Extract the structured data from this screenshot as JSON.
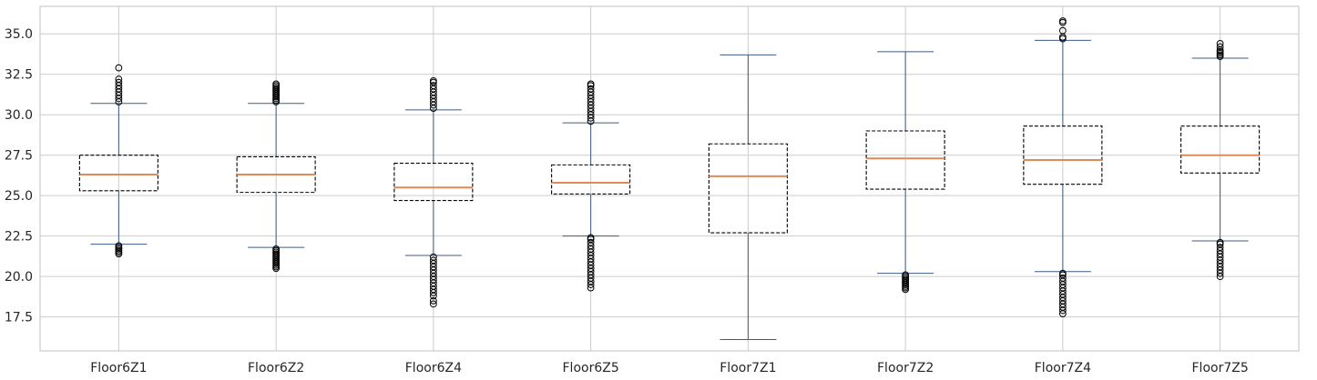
{
  "chart_data": {
    "type": "box",
    "categories": [
      "Floor6Z1",
      "Floor6Z2",
      "Floor6Z4",
      "Floor6Z5",
      "Floor7Z1",
      "Floor7Z2",
      "Floor7Z4",
      "Floor7Z5"
    ],
    "ylim": [
      15.4,
      36.7
    ],
    "yticks": [
      "17.5",
      "20.0",
      "22.5",
      "25.0",
      "27.5",
      "30.0",
      "32.5",
      "35.0"
    ],
    "grid": true,
    "boxes": [
      {
        "name": "Floor6Z1",
        "whisker_low": 22.0,
        "q1": 25.3,
        "median": 26.3,
        "q3": 27.5,
        "whisker_high": 30.7,
        "outliers_low": [
          21.4,
          21.5,
          21.6,
          21.7,
          21.8,
          21.9
        ],
        "outliers_high": [
          30.8,
          31.0,
          31.2,
          31.4,
          31.6,
          31.8,
          32.0,
          32.2,
          32.9
        ]
      },
      {
        "name": "Floor6Z2",
        "whisker_low": 21.8,
        "q1": 25.2,
        "median": 26.3,
        "q3": 27.4,
        "whisker_high": 30.7,
        "outliers_low": [
          20.5,
          20.6,
          20.7,
          20.8,
          20.9,
          21.0,
          21.1,
          21.2,
          21.3,
          21.4,
          21.5,
          21.6,
          21.7
        ],
        "outliers_high": [
          30.8,
          30.9,
          31.0,
          31.1,
          31.2,
          31.3,
          31.4,
          31.5,
          31.6,
          31.7,
          31.8,
          31.9
        ]
      },
      {
        "name": "Floor6Z4",
        "whisker_low": 21.3,
        "q1": 24.7,
        "median": 25.5,
        "q3": 27.0,
        "whisker_high": 30.3,
        "outliers_low": [
          18.3,
          18.5,
          18.8,
          19.0,
          19.2,
          19.4,
          19.6,
          19.8,
          20.0,
          20.2,
          20.4,
          20.6,
          20.8,
          21.0,
          21.2
        ],
        "outliers_high": [
          30.4,
          30.6,
          30.8,
          31.0,
          31.2,
          31.4,
          31.6,
          31.8,
          32.0,
          32.1
        ]
      },
      {
        "name": "Floor6Z5",
        "whisker_low": 22.5,
        "q1": 25.1,
        "median": 25.8,
        "q3": 26.9,
        "whisker_high": 29.5,
        "outliers_low": [
          19.3,
          19.5,
          19.7,
          19.9,
          20.1,
          20.3,
          20.5,
          20.7,
          20.9,
          21.1,
          21.3,
          21.5,
          21.7,
          21.9,
          22.1,
          22.3,
          22.4
        ],
        "outliers_high": [
          29.6,
          29.8,
          30.0,
          30.2,
          30.4,
          30.6,
          30.8,
          31.0,
          31.2,
          31.4,
          31.6,
          31.8,
          31.9
        ]
      },
      {
        "name": "Floor7Z1",
        "whisker_low": 16.1,
        "q1": 22.7,
        "median": 26.2,
        "q3": 28.2,
        "whisker_high": 33.7,
        "outliers_low": [],
        "outliers_high": []
      },
      {
        "name": "Floor7Z2",
        "whisker_low": 20.2,
        "q1": 25.4,
        "median": 27.3,
        "q3": 29.0,
        "whisker_high": 33.9,
        "outliers_low": [
          19.2,
          19.3,
          19.4,
          19.5,
          19.6,
          19.7,
          19.8,
          19.9,
          20.0,
          20.1
        ],
        "outliers_high": []
      },
      {
        "name": "Floor7Z4",
        "whisker_low": 20.3,
        "q1": 25.7,
        "median": 27.2,
        "q3": 29.3,
        "whisker_high": 34.6,
        "outliers_low": [
          17.7,
          17.9,
          18.1,
          18.3,
          18.5,
          18.7,
          18.9,
          19.1,
          19.3,
          19.5,
          19.7,
          19.9,
          20.1,
          20.2
        ],
        "outliers_high": [
          34.7,
          34.8,
          35.2,
          35.7,
          35.8
        ]
      },
      {
        "name": "Floor7Z5",
        "whisker_low": 22.2,
        "q1": 26.4,
        "median": 27.5,
        "q3": 29.3,
        "whisker_high": 33.5,
        "outliers_low": [
          20.0,
          20.2,
          20.4,
          20.6,
          20.8,
          21.0,
          21.2,
          21.4,
          21.6,
          21.8,
          22.0,
          22.1
        ],
        "outliers_high": [
          33.6,
          33.7,
          33.8,
          33.9,
          34.0,
          34.2,
          34.4
        ]
      }
    ]
  },
  "colors": {
    "box": "#000000",
    "whisker": "#3b5b85",
    "median": "#e08a5a",
    "grid": "#cccccc",
    "axis": "#cccccc",
    "outlier": "#000000",
    "text": "#262626"
  }
}
